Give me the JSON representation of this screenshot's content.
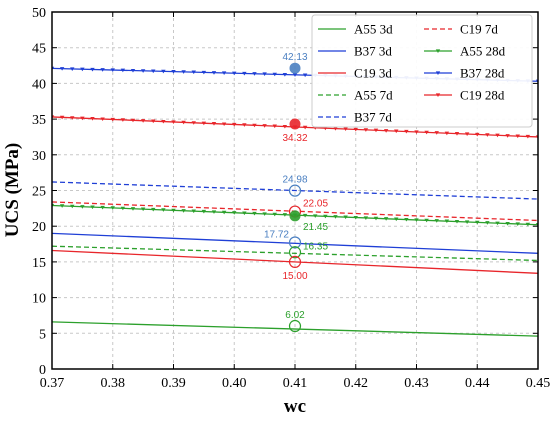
{
  "chart_data": {
    "type": "line",
    "xlabel": "wc",
    "ylabel": "UCS (MPa)",
    "xlim": [
      0.37,
      0.45
    ],
    "ylim": [
      0,
      50
    ],
    "x_ticks": [
      "0.37",
      "0.38",
      "0.39",
      "0.40",
      "0.41",
      "0.42",
      "0.43",
      "0.44",
      "0.45"
    ],
    "y_ticks": [
      "0",
      "5",
      "10",
      "15",
      "20",
      "25",
      "30",
      "35",
      "40",
      "45",
      "50"
    ],
    "grid": true,
    "legend_position": "top-right",
    "x": [
      0.37,
      0.45
    ],
    "series": [
      {
        "name": "A55 3d",
        "color": "#2ca02c",
        "style": "solid",
        "marker": "none",
        "values": [
          6.6,
          4.6
        ]
      },
      {
        "name": "B37 3d",
        "color": "#1f3fd6",
        "style": "solid",
        "marker": "none",
        "values": [
          19.0,
          16.2
        ]
      },
      {
        "name": "C19 3d",
        "color": "#e8262b",
        "style": "solid",
        "marker": "none",
        "values": [
          16.6,
          13.4
        ]
      },
      {
        "name": "A55 7d",
        "color": "#2ca02c",
        "style": "dashed",
        "marker": "none",
        "values": [
          17.2,
          15.2
        ]
      },
      {
        "name": "B37 7d",
        "color": "#1f3fd6",
        "style": "dashed",
        "marker": "none",
        "values": [
          26.2,
          23.8
        ]
      },
      {
        "name": "C19 7d",
        "color": "#e8262b",
        "style": "dashed",
        "marker": "none",
        "values": [
          23.4,
          20.8
        ]
      },
      {
        "name": "A55 28d",
        "color": "#2ca02c",
        "style": "solid",
        "marker": "triangle",
        "values": [
          22.9,
          20.2
        ]
      },
      {
        "name": "B37 28d",
        "color": "#1f3fd6",
        "style": "solid",
        "marker": "triangle",
        "values": [
          42.1,
          40.3
        ]
      },
      {
        "name": "C19 28d",
        "color": "#e8262b",
        "style": "solid",
        "marker": "triangle",
        "values": [
          35.3,
          32.5
        ]
      }
    ],
    "annotations": [
      {
        "x": 0.41,
        "y": 42.13,
        "label": "42.13",
        "color": "#4a7fc1",
        "marker": "filled",
        "label_pos": "above"
      },
      {
        "x": 0.41,
        "y": 34.32,
        "label": "34.32",
        "color": "#e8262b",
        "marker": "filled",
        "label_pos": "below"
      },
      {
        "x": 0.41,
        "y": 24.98,
        "label": "24.98",
        "color": "#4a7fc1",
        "marker": "open",
        "label_pos": "above"
      },
      {
        "x": 0.41,
        "y": 22.05,
        "label": "22.05",
        "color": "#e8262b",
        "marker": "open",
        "label_pos": "above-right"
      },
      {
        "x": 0.41,
        "y": 21.45,
        "label": "21.45",
        "color": "#2ca02c",
        "marker": "filled",
        "label_pos": "below-right"
      },
      {
        "x": 0.41,
        "y": 17.72,
        "label": "17.72",
        "color": "#4a7fc1",
        "marker": "open",
        "label_pos": "above-left"
      },
      {
        "x": 0.41,
        "y": 16.35,
        "label": "16.35",
        "color": "#2ca02c",
        "marker": "open",
        "label_pos": "right"
      },
      {
        "x": 0.41,
        "y": 15.0,
        "label": "15.00",
        "color": "#e8262b",
        "marker": "open",
        "label_pos": "below"
      },
      {
        "x": 0.41,
        "y": 6.02,
        "label": "6.02",
        "color": "#2ca02c",
        "marker": "open",
        "label_pos": "above"
      }
    ]
  }
}
